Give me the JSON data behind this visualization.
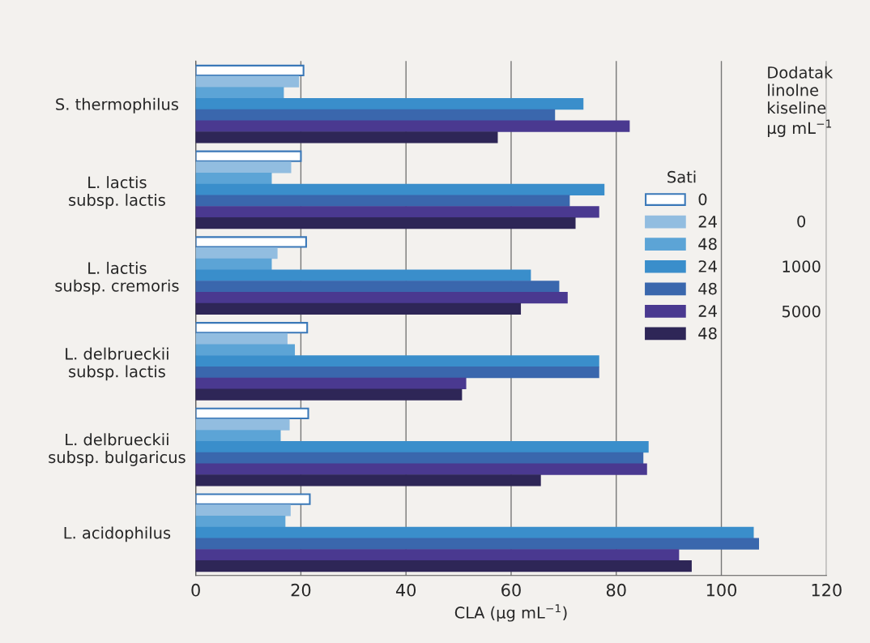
{
  "chart_data": {
    "type": "bar",
    "orientation": "horizontal",
    "xlabel": "CLA (µg mL$^{−1}$)",
    "legend_title": "Sati",
    "categories": [
      "S. thermophilus",
      "L. lactis\nsubsp. lactis",
      "L. lactis\nsubsp. cremoris",
      "L. delbrueckii\nsubsp. lactis",
      "L. delbrueckii\nsubsp. bulgaricus",
      "L. acidophilus"
    ],
    "series": [
      {
        "name": "0",
        "color": "#ffffff",
        "values": [
          20.5,
          20,
          21,
          21.2,
          21.4,
          21.7
        ]
      },
      {
        "name": "24",
        "color": "#92bde0",
        "values": [
          19.5,
          18,
          15.4,
          17.3,
          17.7,
          17.9
        ]
      },
      {
        "name": "48",
        "color": "#5ca4d6",
        "values": [
          16.6,
          14.3,
          14.3,
          18.7,
          16,
          16.9
        ]
      },
      {
        "name": "24",
        "color": "#3a8ecb",
        "values": [
          73.6,
          77.6,
          63.6,
          76.6,
          86,
          106
        ]
      },
      {
        "name": "48",
        "color": "#3a67ad",
        "values": [
          68.2,
          71,
          69,
          76.6,
          85,
          107
        ]
      },
      {
        "name": "24",
        "color": "#4a3990",
        "values": [
          82.4,
          76.6,
          70.6,
          51.3,
          85.7,
          91.8
        ]
      },
      {
        "name": "48",
        "color": "#2e2657",
        "values": [
          57.3,
          72.1,
          61.7,
          50.5,
          65.5,
          94.2
        ]
      }
    ],
    "xlim": [
      0,
      120
    ],
    "xticks": [
      0,
      20,
      40,
      60,
      80,
      100,
      120
    ],
    "grid": "x",
    "legend": "right",
    "annotations": [
      "Dodatak\nlinolne\nkiseline\nµg mL$^{−1}$",
      "0",
      "1000",
      "5000"
    ]
  }
}
